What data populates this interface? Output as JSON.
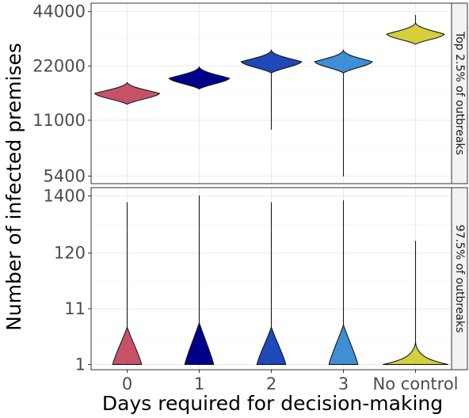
{
  "chart_data": {
    "type": "violin",
    "xlabel": "Days required for decision-making",
    "ylabel": "Number of infected premises",
    "categories": [
      "0",
      "1",
      "2",
      "3",
      "No control"
    ],
    "colors": {
      "0": "#c75268",
      "1": "#00008b",
      "2": "#1f48b8",
      "3": "#3f8fd6",
      "No control": "#d4cf3c"
    },
    "y_scale": "log",
    "grid": true,
    "panels": [
      {
        "label": "Top 2.5% of outbreaks",
        "yticks": [
          5400,
          11000,
          22000,
          44000
        ],
        "ytick_labels": [
          "5400",
          "11000",
          "22000",
          "44000"
        ],
        "ylim": [
          4900,
          49000
        ],
        "series": [
          {
            "category": "0",
            "min": 13500,
            "max": 17800,
            "mode": 15500,
            "half_width": 0.45
          },
          {
            "category": "1",
            "min": 16400,
            "max": 21800,
            "mode": 18800,
            "half_width": 0.42
          },
          {
            "category": "2",
            "min": 9800,
            "max": 27000,
            "mode": 23200,
            "half_width": 0.42
          },
          {
            "category": "3",
            "min": 5400,
            "max": 27000,
            "mode": 23200,
            "half_width": 0.4
          },
          {
            "category": "No control",
            "min": 29000,
            "max": 42000,
            "mode": 33000,
            "half_width": 0.4
          }
        ]
      },
      {
        "label": "97.5% of outbreaks",
        "yticks": [
          1,
          11,
          120,
          1400
        ],
        "ytick_labels": [
          "1",
          "11",
          "120",
          "1400"
        ],
        "ylim": [
          0.8,
          2000
        ],
        "series": [
          {
            "category": "0",
            "min": 1,
            "max": 1050,
            "top_base": 5,
            "half_width": 0.2
          },
          {
            "category": "1",
            "min": 1,
            "max": 1400,
            "top_base": 6,
            "half_width": 0.2
          },
          {
            "category": "2",
            "min": 1,
            "max": 1050,
            "top_base": 5,
            "half_width": 0.2
          },
          {
            "category": "3",
            "min": 1,
            "max": 1150,
            "top_base": 5.5,
            "half_width": 0.2
          },
          {
            "category": "No control",
            "min": 1,
            "max": 200,
            "top_base": 2.6,
            "half_width": 0.45
          }
        ]
      }
    ]
  }
}
